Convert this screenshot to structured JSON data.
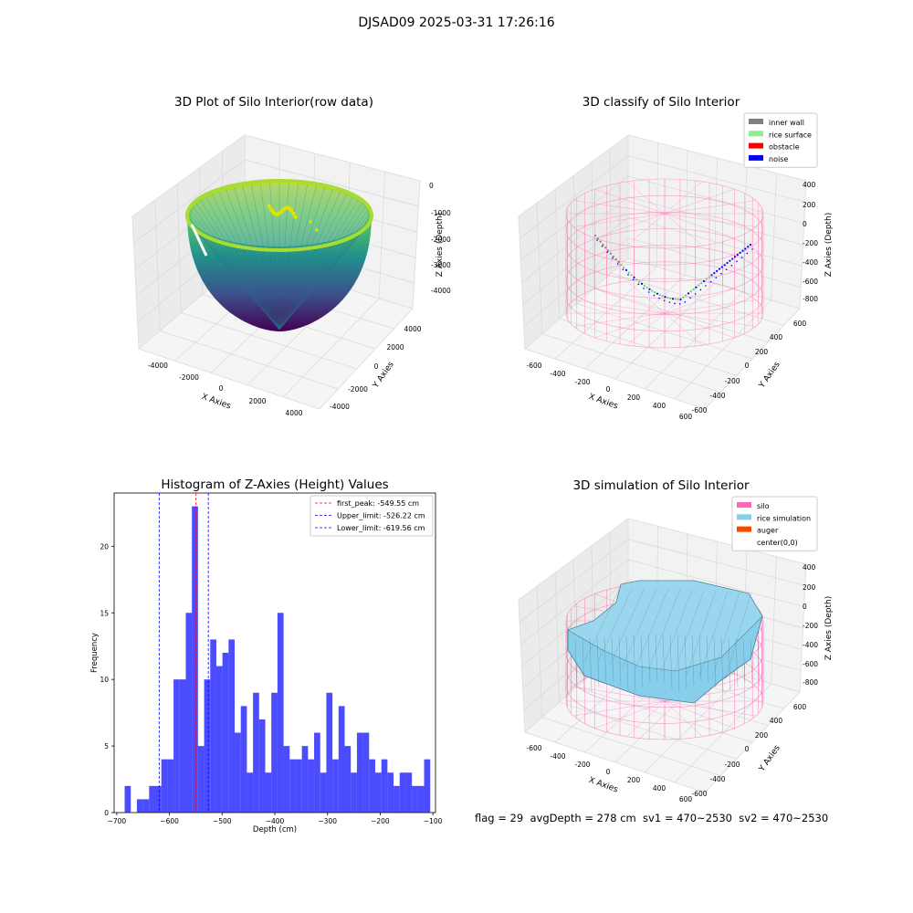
{
  "suptitle": "DJSAD09 2025-03-31 17:26:16",
  "footer": "flag = 29  avgDepth = 278 cm  sv1 = 470~2530  sv2 = 470~2530",
  "chart_data": [
    {
      "type": "surface3d",
      "title": "3D Plot of Silo Interior(row data)",
      "xlabel": "X Axies",
      "ylabel": "Y Axies",
      "zlabel": "Z Axies (Depth)",
      "x_ticks": [
        "-4000",
        "-2000",
        "0",
        "2000",
        "4000"
      ],
      "y_ticks": [
        "-4000",
        "-2000",
        "0",
        "2000",
        "4000"
      ],
      "z_ticks": [
        "0",
        "-1000",
        "-2000",
        "-3000",
        "-4000"
      ],
      "colormap": "viridis"
    },
    {
      "type": "scatter3d",
      "title": "3D classify of Silo Interior",
      "xlabel": "X Axies",
      "ylabel": "Y Axies",
      "zlabel": "Z Axies (Depth)",
      "x_ticks": [
        "-600",
        "-400",
        "-200",
        "0",
        "200",
        "400",
        "600"
      ],
      "y_ticks": [
        "-600",
        "-400",
        "-200",
        "0",
        "200",
        "400",
        "600"
      ],
      "z_ticks": [
        "400",
        "200",
        "0",
        "-200",
        "-400",
        "-600",
        "-800"
      ],
      "legend": [
        {
          "label": "inner wall",
          "color": "#808080"
        },
        {
          "label": "rice surface",
          "color": "#90ee90"
        },
        {
          "label": "obstacle",
          "color": "#ff0000"
        },
        {
          "label": "noise",
          "color": "#0000ff"
        }
      ],
      "legend_position": "top-right"
    },
    {
      "type": "bar",
      "title": "Histogram of Z-Axies (Height) Values",
      "xlabel": "Depth (cm)",
      "ylabel": "Frequency",
      "xlim": [
        -705,
        -95
      ],
      "ylim": [
        0,
        24
      ],
      "x_ticks": [
        -700,
        -600,
        -500,
        -400,
        -300,
        -200,
        -100
      ],
      "y_ticks": [
        0,
        5,
        10,
        15,
        20
      ],
      "bin_start": -685,
      "bin_width": 11.6,
      "values": [
        2,
        0,
        1,
        1,
        2,
        2,
        4,
        4,
        10,
        10,
        15,
        23,
        5,
        10,
        13,
        11,
        12,
        13,
        6,
        8,
        3,
        9,
        7,
        3,
        9,
        15,
        5,
        4,
        4,
        5,
        4,
        6,
        3,
        9,
        4,
        8,
        5,
        3,
        6,
        6,
        4,
        3,
        4,
        3,
        2,
        3,
        3,
        2,
        2,
        4
      ],
      "bar_color": "#0000ff",
      "lines": [
        {
          "label": "first_peak: -549.55 cm",
          "x": -549.55,
          "color": "#ff0000"
        },
        {
          "label": "Upper_limit: -526.22 cm",
          "x": -526.22,
          "color": "#0000ff"
        },
        {
          "label": "Lower_limit: -619.56 cm",
          "x": -619.56,
          "color": "#0000ff"
        }
      ],
      "legend_position": "top-right"
    },
    {
      "type": "surface3d",
      "title": "3D simulation of Silo Interior",
      "xlabel": "X Axies",
      "ylabel": "Y Axies",
      "zlabel": "Z Axies (Depth)",
      "x_ticks": [
        "-600",
        "-400",
        "-200",
        "0",
        "200",
        "400",
        "600"
      ],
      "y_ticks": [
        "-600",
        "-400",
        "-200",
        "0",
        "200",
        "400",
        "600"
      ],
      "z_ticks": [
        "400",
        "200",
        "0",
        "-200",
        "-400",
        "-600",
        "-800"
      ],
      "legend": [
        {
          "label": "silo",
          "color": "#ff69b4"
        },
        {
          "label": "rice simulation",
          "color": "#87ceeb"
        },
        {
          "label": "auger",
          "color": "#ff4500"
        },
        {
          "label": "center(0,0)",
          "color": "none"
        }
      ],
      "legend_position": "top-right"
    }
  ]
}
